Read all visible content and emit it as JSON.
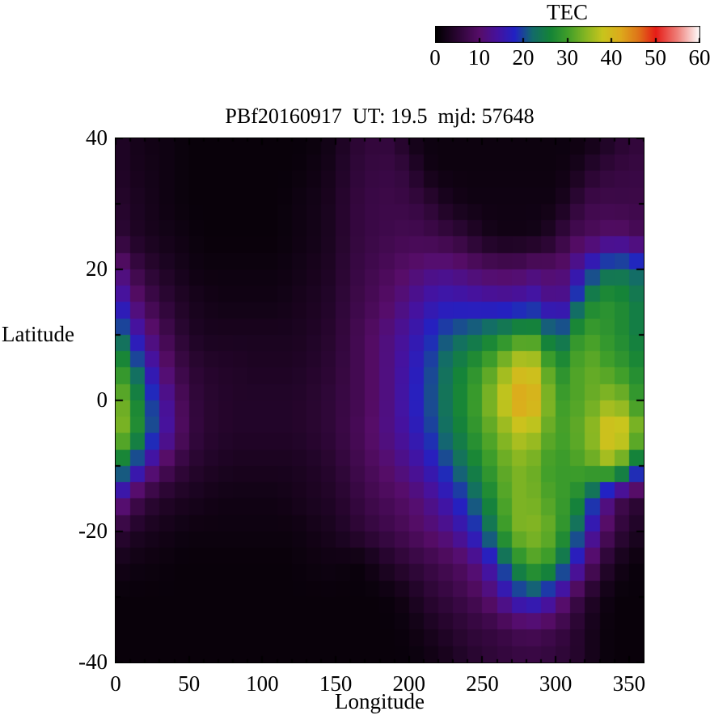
{
  "chart_data": {
    "type": "heatmap",
    "title": "PBf20160917  UT: 19.5  mjd: 57648",
    "xlabel": "Longitude",
    "ylabel": "Latitude",
    "xlim": [
      0,
      360
    ],
    "ylim": [
      -40,
      40
    ],
    "grid": false,
    "x_ticks": {
      "values": [
        0,
        50,
        100,
        150,
        200,
        250,
        300,
        350
      ],
      "labels": [
        "0",
        "50",
        "100",
        "150",
        "200",
        "250",
        "300",
        "350"
      ],
      "minor_step": 10
    },
    "y_ticks": {
      "values": [
        40,
        20,
        0,
        -20,
        -40
      ],
      "labels": [
        "40",
        "20",
        "0",
        "-20",
        "-40"
      ],
      "minor_step": 10
    },
    "colorbar": {
      "title": "TEC",
      "min": 0,
      "max": 60,
      "tick_values": [
        0,
        10,
        20,
        30,
        40,
        50,
        60
      ],
      "tick_labels": [
        "0",
        "10",
        "20",
        "30",
        "40",
        "50",
        "60"
      ],
      "position": "top"
    },
    "palette_anchors": [
      [
        0,
        "#000000"
      ],
      [
        5,
        "#2b0633"
      ],
      [
        10,
        "#570d69"
      ],
      [
        14,
        "#46129e"
      ],
      [
        18,
        "#2222c4"
      ],
      [
        22,
        "#136b6b"
      ],
      [
        26,
        "#158438"
      ],
      [
        30,
        "#3f9e2a"
      ],
      [
        34,
        "#85b623"
      ],
      [
        38,
        "#c9c51d"
      ],
      [
        42,
        "#ddab1c"
      ],
      [
        46,
        "#df7519"
      ],
      [
        50,
        "#e61c17"
      ],
      [
        55,
        "#ef827c"
      ],
      [
        60,
        "#ffffff"
      ]
    ],
    "lon_step": 10,
    "lat_step": 5,
    "lons": [
      0,
      10,
      20,
      30,
      40,
      50,
      60,
      70,
      80,
      90,
      100,
      110,
      120,
      130,
      140,
      150,
      160,
      170,
      180,
      190,
      200,
      210,
      220,
      230,
      240,
      250,
      260,
      270,
      280,
      290,
      300,
      310,
      320,
      330,
      340,
      350,
      360
    ],
    "lats": [
      40,
      35,
      30,
      25,
      20,
      15,
      10,
      5,
      0,
      -5,
      -10,
      -15,
      -20,
      -25,
      -30,
      -35,
      -40
    ],
    "values": [
      [
        4,
        3,
        2,
        2,
        1.5,
        1,
        1,
        1,
        1,
        1,
        1,
        1,
        1,
        1,
        1.5,
        2.5,
        4.5,
        5.5,
        6,
        5.5,
        2.5,
        1.5,
        1.5,
        1.5,
        1.5,
        1.5,
        1.5,
        1.5,
        1.5,
        1.5,
        1.5,
        1.5,
        1.5,
        2.5,
        4,
        5.5,
        5.5
      ],
      [
        4,
        3,
        2.5,
        2,
        1.5,
        1,
        1,
        1,
        1,
        1,
        1,
        1,
        1,
        1.5,
        2,
        3,
        5,
        6,
        6.5,
        6.5,
        5.5,
        2.5,
        1.5,
        1.5,
        1.5,
        1.5,
        1.5,
        1.5,
        1.5,
        1.5,
        1.5,
        2,
        3.5,
        5.5,
        6,
        6.5,
        6.5
      ],
      [
        5,
        3.5,
        3,
        2,
        1.5,
        1,
        1,
        1,
        1,
        1,
        1,
        1,
        1.5,
        2,
        2.5,
        3.5,
        5.5,
        6.5,
        7,
        7,
        6.5,
        6,
        4,
        2.5,
        2,
        1.8,
        1.8,
        1.8,
        1.8,
        1.8,
        2,
        4,
        7,
        7.5,
        7,
        7,
        7
      ],
      [
        6,
        4,
        3,
        2.5,
        2,
        1.5,
        1,
        1,
        1,
        1,
        1,
        1,
        1.5,
        2,
        2.5,
        3.5,
        5.5,
        6.5,
        7,
        7.5,
        8,
        7.5,
        7,
        6,
        5,
        3,
        2,
        2,
        2,
        2.5,
        4.5,
        7.5,
        8.5,
        9,
        10.5,
        9,
        8
      ],
      [
        13,
        8,
        5.5,
        4,
        3,
        2,
        1.5,
        1.5,
        1.5,
        1.5,
        1.5,
        1.5,
        2,
        2.5,
        3,
        4,
        6,
        7,
        8,
        9,
        10,
        11,
        12,
        11.5,
        10.5,
        9.5,
        9,
        9,
        9.5,
        11,
        9,
        12,
        16,
        21,
        24,
        22,
        21
      ],
      [
        18,
        12,
        8.5,
        6,
        4.5,
        3,
        2.5,
        2,
        2,
        2,
        2,
        2,
        2.5,
        3,
        3.5,
        4.5,
        6.5,
        7.5,
        9,
        10.5,
        12.5,
        14.5,
        16,
        16,
        15.5,
        15,
        14.5,
        14.5,
        15.5,
        16,
        10.5,
        16,
        25,
        28,
        28,
        26,
        24
      ],
      [
        25,
        18,
        12.5,
        9,
        6,
        4,
        3,
        3,
        3,
        3,
        3,
        3,
        3,
        3.5,
        4,
        5,
        7,
        8.5,
        10.5,
        12.5,
        14.5,
        17,
        19.5,
        21.5,
        22.5,
        24,
        26,
        28,
        30,
        28,
        20,
        26,
        31,
        29,
        28,
        26,
        24
      ],
      [
        31,
        25,
        18,
        12,
        8,
        5.5,
        4.5,
        4,
        4,
        3.5,
        3.5,
        3.5,
        3.5,
        4,
        4.5,
        5.5,
        7,
        8.5,
        10.5,
        13,
        15.5,
        18.5,
        21.5,
        24.5,
        27,
        29.5,
        33,
        37,
        40,
        36,
        27,
        29,
        33,
        31,
        30,
        28,
        26
      ],
      [
        35,
        30,
        23,
        16,
        10.5,
        6.5,
        5,
        4.5,
        4,
        4,
        4,
        4,
        4,
        4.5,
        5,
        6,
        7,
        8.5,
        10.5,
        13,
        16,
        19,
        22,
        25,
        28,
        31.5,
        36,
        40.5,
        45,
        38,
        30,
        30,
        32,
        33,
        36,
        31,
        28
      ],
      [
        36,
        31,
        24,
        17,
        11,
        7,
        5,
        4.5,
        4,
        4,
        4,
        4,
        4,
        4.5,
        5,
        6,
        7.5,
        9,
        11,
        13,
        15,
        18,
        21,
        24,
        27,
        30,
        33,
        36,
        38,
        34,
        30,
        31,
        33,
        37,
        43,
        36,
        33
      ],
      [
        27,
        21,
        15,
        10,
        7,
        5,
        4,
        3.5,
        3,
        3,
        3,
        3,
        3,
        3.5,
        4,
        5,
        6.5,
        8,
        9.5,
        11,
        13,
        15,
        18,
        21,
        24,
        27.5,
        31,
        33,
        34,
        31,
        29,
        30,
        31,
        33,
        36,
        26,
        20
      ],
      [
        15,
        9.5,
        6,
        4.5,
        3.5,
        3,
        2.5,
        2,
        2,
        2,
        2,
        2,
        2.5,
        3,
        3.5,
        4,
        5.5,
        7,
        8,
        9,
        10,
        12,
        14,
        17,
        20,
        24,
        29,
        33,
        34,
        32,
        30,
        29,
        25,
        16,
        9,
        6,
        5
      ],
      [
        6,
        4,
        3,
        2.5,
        2,
        1.5,
        1.5,
        1.5,
        1.5,
        1.5,
        1.5,
        1.5,
        1.5,
        2,
        2.5,
        3,
        4.5,
        5.5,
        6.5,
        7.5,
        8.5,
        10,
        11,
        13,
        16,
        20,
        26,
        33,
        34,
        34,
        31,
        26,
        18,
        11,
        7,
        4,
        3
      ],
      [
        2.5,
        2,
        1.5,
        1.5,
        1,
        1,
        1,
        1,
        1,
        1,
        1,
        1,
        1,
        1.5,
        1.5,
        2,
        1,
        1.5,
        3,
        4.5,
        5.5,
        6.5,
        7.5,
        8.5,
        10,
        13,
        18,
        25,
        30,
        31,
        27,
        19,
        12,
        6,
        3,
        1.5,
        1
      ],
      [
        1,
        1,
        1,
        1,
        1,
        1,
        1,
        1,
        1,
        1,
        1,
        1,
        1,
        1,
        1,
        1,
        1,
        1,
        1,
        1.5,
        2.5,
        4.5,
        5.5,
        6.5,
        7.5,
        9,
        12,
        16,
        19,
        18,
        14,
        9,
        5,
        2.5,
        1,
        1,
        1
      ],
      [
        1,
        1,
        1,
        1,
        1,
        1,
        1,
        1,
        1,
        1,
        1,
        1,
        1,
        1,
        1,
        1,
        1,
        1,
        1,
        1,
        1.5,
        2.5,
        3.5,
        4.5,
        5.5,
        6,
        6.5,
        7.5,
        8.5,
        8,
        7,
        5.5,
        3.5,
        1.5,
        1,
        1,
        1
      ],
      [
        1,
        1,
        1,
        1,
        1,
        1,
        1,
        1,
        1,
        1,
        1,
        1,
        1,
        1,
        1,
        1,
        1,
        1,
        1,
        1,
        1,
        1.5,
        2,
        3,
        4,
        5,
        5.5,
        6,
        6,
        6,
        5.5,
        5,
        3.5,
        1.5,
        1,
        1,
        1
      ]
    ]
  }
}
